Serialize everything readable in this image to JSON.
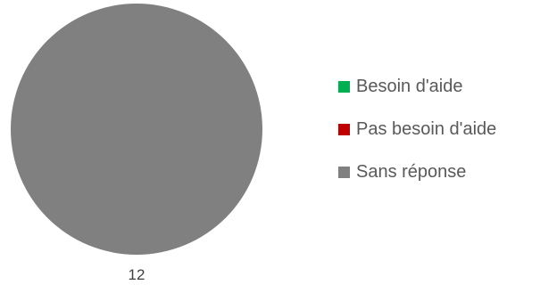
{
  "chart_data": {
    "type": "pie",
    "categories": [
      "Besoin d'aide",
      "Pas besoin d'aide",
      "Sans réponse"
    ],
    "values": [
      0,
      0,
      12
    ],
    "colors": [
      "#00b050",
      "#c00000",
      "#808080"
    ],
    "data_labels": [
      "",
      "",
      "12"
    ],
    "legend_position": "right",
    "title": ""
  }
}
